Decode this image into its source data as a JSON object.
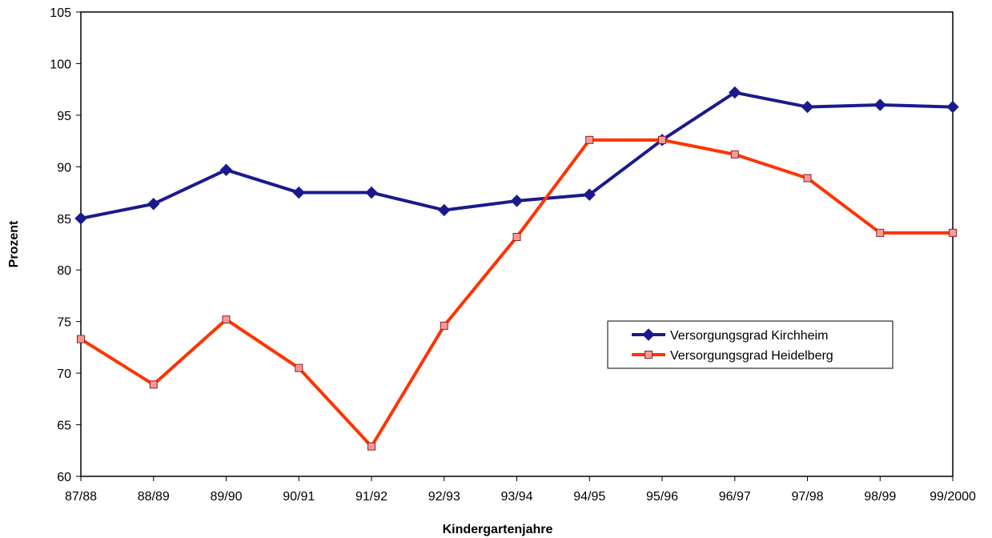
{
  "chart_data": {
    "type": "line",
    "title": "",
    "xlabel": "Kindergartenjahre",
    "ylabel": "Prozent",
    "categories": [
      "87/88",
      "88/89",
      "89/90",
      "90/91",
      "91/92",
      "92/93",
      "93/94",
      "94/95",
      "95/96",
      "96/97",
      "97/98",
      "98/99",
      "99/2000"
    ],
    "ylim": [
      60,
      105
    ],
    "yticks": [
      60,
      65,
      70,
      75,
      80,
      85,
      90,
      95,
      100,
      105
    ],
    "grid": false,
    "legend_position": "right",
    "series": [
      {
        "name": "Versorgungsgrad Kirchheim",
        "color": "#1a1a8c",
        "marker": "diamond",
        "values": [
          85.0,
          86.4,
          89.7,
          87.5,
          87.5,
          85.8,
          86.7,
          87.3,
          92.6,
          97.2,
          95.8,
          96.0,
          95.8
        ]
      },
      {
        "name": "Versorgungsgrad Heidelberg",
        "color": "#ff3300",
        "marker_fill": "#ff9999",
        "marker": "square",
        "values": [
          73.3,
          68.9,
          75.2,
          70.5,
          62.9,
          74.6,
          83.2,
          92.6,
          92.6,
          91.2,
          88.9,
          83.6,
          83.6
        ]
      }
    ]
  }
}
